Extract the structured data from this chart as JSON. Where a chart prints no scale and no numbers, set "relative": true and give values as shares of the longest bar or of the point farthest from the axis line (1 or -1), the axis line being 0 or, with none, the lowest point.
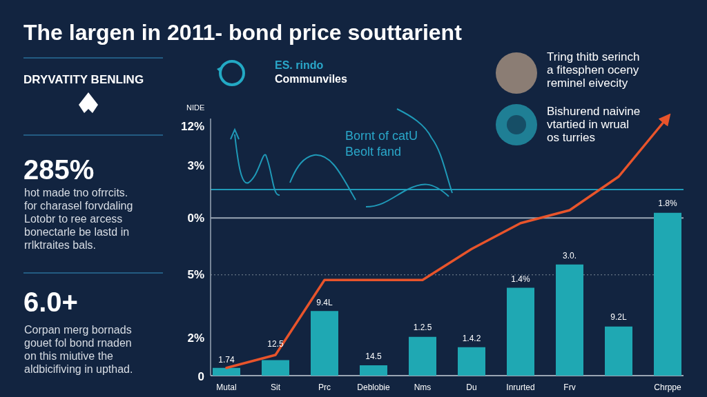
{
  "chart_data": {
    "type": "bar",
    "title": "The largen in 2011- bond price souttarient",
    "ylabel": "NIDE",
    "relative": true,
    "categories": [
      "Mutal",
      "Sit",
      "Prc",
      "Deblobie",
      "Nms",
      "Du",
      "Inrurted",
      "Frv",
      null,
      "Chrppe"
    ],
    "series": [
      {
        "color": "#1fa8b3",
        "values": [
          0.03,
          0.06,
          0.25,
          0.04,
          0.15,
          0.11,
          0.34,
          0.43,
          0.19,
          0.63
        ]
      },
      {
        "type": "line",
        "color": "#e8542b",
        "values": [
          0.03,
          0.08,
          0.37,
          0.37,
          0.37,
          0.49,
          0.59,
          0.64,
          0.77,
          1
        ]
      }
    ],
    "ref_lines": [
      {
        "axis": "y",
        "value": 0.72,
        "color": "#1f9ab8",
        "line_style": "solid"
      },
      {
        "axis": "y",
        "value": 0.61,
        "color": "#9aa6b4",
        "line_style": "solid"
      },
      {
        "axis": "y",
        "value": 0.39,
        "color": "#7d8896",
        "line_style": "dotted"
      }
    ],
    "annotations": [
      "12%",
      "3%",
      "0%",
      "5%",
      "2%",
      "0",
      "DRYVATITY BENLING",
      "285%",
      "hot made tno ofrrcits.\nfor charasel forvdaling\nLotobr to ree arcess\nbonectarle be lastd in\nrrlktraites bals.",
      "6.0+",
      "Corpan merg bornads\ngouet fol bond rnaden\non this miutive the\naldbicifiving in upthad.",
      "ES. rindo",
      "Communviles",
      "Tring thitb serinch\na fitesphen oceny\nreminel eivecity",
      "Bishurend naivine\nvtartied in wrual\nos turries",
      "Bornt of catU\nBeolt fand",
      "1.74",
      "12.5",
      "9.4L",
      "14.5",
      "1.2.5",
      "1.4.2",
      "1.4%",
      "3.0.",
      "9.2L",
      "1.8%"
    ]
  }
}
